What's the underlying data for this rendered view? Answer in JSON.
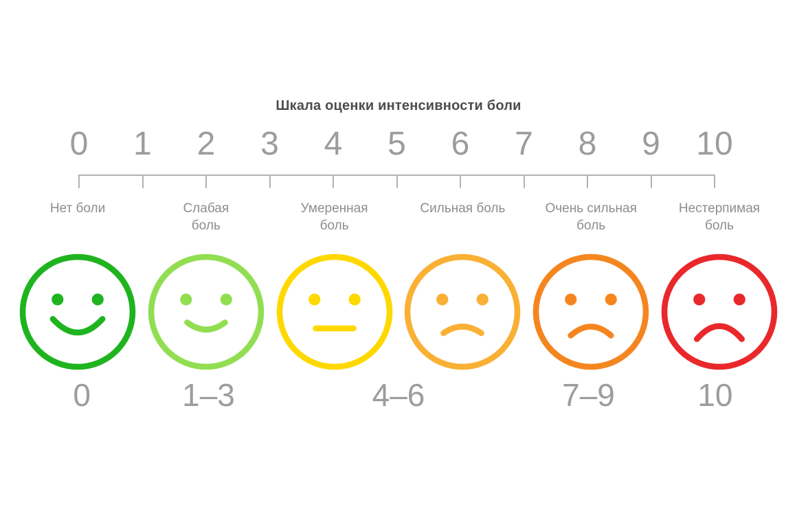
{
  "title": "Шкала оценки интенсивности боли",
  "scale": {
    "numbers": [
      "0",
      "1",
      "2",
      "3",
      "4",
      "5",
      "6",
      "7",
      "8",
      "9",
      "10"
    ],
    "line_color": "#b2b2b2"
  },
  "faces": [
    {
      "label": "Нет боли",
      "expression": "smile-big",
      "color": "#1fb41f",
      "icon": "face-big-smile-icon"
    },
    {
      "label": "Слабая\nболь",
      "expression": "smile-slight",
      "color": "#92de52",
      "icon": "face-slight-smile-icon"
    },
    {
      "label": "Умеренная\nболь",
      "expression": "neutral",
      "color": "#ffd800",
      "icon": "face-neutral-icon"
    },
    {
      "label": "Сильная боль",
      "expression": "frown-slight",
      "color": "#f9b034",
      "icon": "face-slight-frown-icon"
    },
    {
      "label": "Очень сильная\nболь",
      "expression": "frown",
      "color": "#f5861f",
      "icon": "face-frown-icon"
    },
    {
      "label": "Нестерпимая\nболь",
      "expression": "frown-big",
      "color": "#e9282b",
      "icon": "face-big-frown-icon"
    }
  ],
  "ranges": [
    "0",
    "1–3",
    "4–6",
    "7–9",
    "10"
  ],
  "text_colors": {
    "title": "#4c4c4c",
    "numbers": "#9c9c9c",
    "labels": "#8d8d8d"
  }
}
